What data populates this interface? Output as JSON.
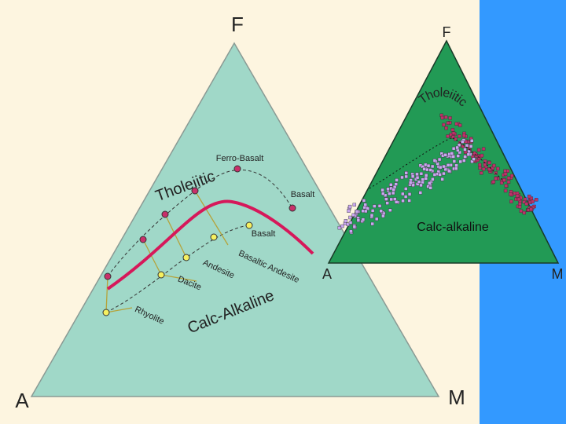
{
  "left_diagram": {
    "vertices": {
      "top": "F",
      "left": "A",
      "right": "M"
    },
    "series_labels": {
      "tholeiitic": "Tholeiitic",
      "calc_alkaline": "Calc-Alkaline"
    },
    "tholeiitic_rocks": [
      "Ferro-Basalt",
      "Basalt"
    ],
    "calc_alkaline_rocks": [
      "Basalt",
      "Basaltic Andesite",
      "Andesite",
      "Dacite",
      "Rhyolite"
    ]
  },
  "right_diagram": {
    "vertices": {
      "top": "F",
      "left": "A",
      "right": "M"
    },
    "series_labels": {
      "tholeiitic": "Tholeiitic",
      "calc_alkaline": "Calc-alkaline"
    }
  }
}
